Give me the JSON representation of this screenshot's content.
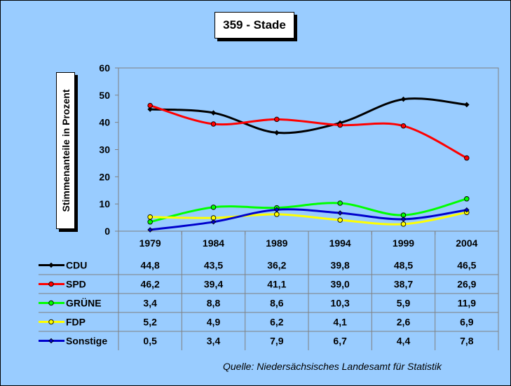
{
  "chart_data": {
    "type": "line",
    "title": "359 - Stade",
    "ylabel": "Stimmenanteile in Prozent",
    "xlabel": "",
    "ylim": [
      0,
      60
    ],
    "yticks": [
      "0",
      "10",
      "20",
      "30",
      "40",
      "50",
      "60"
    ],
    "yticks_values": [
      0,
      10,
      20,
      30,
      40,
      50,
      60
    ],
    "categories": [
      "1979",
      "1984",
      "1989",
      "1994",
      "1999",
      "2004"
    ],
    "grid": false,
    "legend": "table-below",
    "series": [
      {
        "name": "CDU",
        "color": "#000000",
        "marker_fill": "#000000",
        "marker": "diamond",
        "values": [
          44.8,
          43.5,
          36.2,
          39.8,
          48.5,
          46.5
        ],
        "labels": [
          "44,8",
          "43,5",
          "36,2",
          "39,8",
          "48,5",
          "46,5"
        ]
      },
      {
        "name": "SPD",
        "color": "#ff0000",
        "marker_fill": "#ff0000",
        "marker": "circle",
        "values": [
          46.2,
          39.4,
          41.1,
          39.0,
          38.7,
          26.9
        ],
        "labels": [
          "46,2",
          "39,4",
          "41,1",
          "39,0",
          "38,7",
          "26,9"
        ]
      },
      {
        "name": "GRÜNE",
        "color": "#00ff00",
        "marker_fill": "#00ff00",
        "marker": "circle",
        "values": [
          3.4,
          8.8,
          8.6,
          10.3,
          5.9,
          11.9
        ],
        "labels": [
          "3,4",
          "8,8",
          "8,6",
          "10,3",
          "5,9",
          "11,9"
        ]
      },
      {
        "name": "FDP",
        "color": "#ffff00",
        "marker_fill": "#ffff00",
        "marker": "circle",
        "values": [
          5.2,
          4.9,
          6.2,
          4.1,
          2.6,
          6.9
        ],
        "labels": [
          "5,2",
          "4,9",
          "6,2",
          "4,1",
          "2,6",
          "6,9"
        ]
      },
      {
        "name": "Sonstige",
        "color": "#0000cc",
        "marker_fill": "#0000cc",
        "marker": "diamond",
        "values": [
          0.5,
          3.4,
          7.9,
          6.7,
          4.4,
          7.8
        ],
        "labels": [
          "0,5",
          "3,4",
          "7,9",
          "6,7",
          "4,4",
          "7,8"
        ]
      }
    ],
    "source": "Quelle: Niedersächsisches Landesamt für Statistik"
  },
  "colors": {
    "background": "#99ccff",
    "plot_background": "#99ccff",
    "axis": "#808080"
  }
}
